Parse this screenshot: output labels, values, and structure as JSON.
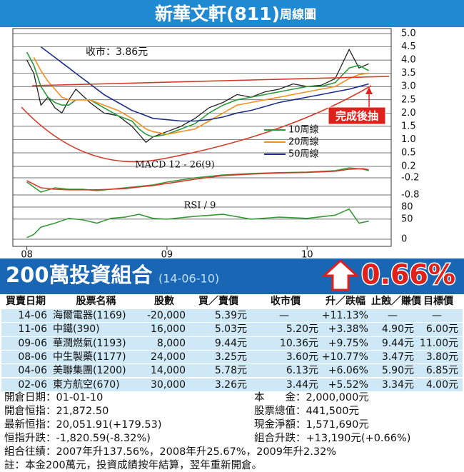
{
  "chart_data": [
    {
      "type": "line",
      "title": "新華文軒(811)",
      "subtitle": "周線圖",
      "x": [
        2008.0,
        2008.05,
        2008.1,
        2008.15,
        2008.2,
        2008.25,
        2008.3,
        2008.35,
        2008.45,
        2008.55,
        2008.65,
        2008.75,
        2008.8,
        2008.85,
        2008.9,
        2009.0,
        2009.1,
        2009.2,
        2009.3,
        2009.4,
        2009.5,
        2009.6,
        2009.7,
        2009.8,
        2009.9,
        2010.0,
        2010.1,
        2010.2,
        2010.3,
        2010.37,
        2010.44
      ],
      "series": [
        {
          "color": "#222222",
          "values": [
            4.0,
            3.5,
            2.3,
            2.6,
            2.2,
            2.0,
            2.5,
            2.9,
            2.4,
            2.0,
            1.9,
            1.5,
            1.2,
            0.9,
            1.1,
            1.3,
            1.5,
            1.8,
            2.2,
            2.4,
            2.7,
            2.6,
            2.8,
            2.9,
            3.1,
            3.0,
            3.05,
            3.3,
            4.4,
            3.7,
            3.86
          ]
        },
        {
          "name": "10周線",
          "color": "#2a9a3a",
          "values": [
            4.3,
            3.8,
            3.0,
            2.6,
            2.4,
            2.3,
            2.3,
            2.5,
            2.5,
            2.2,
            1.9,
            1.7,
            1.4,
            1.2,
            1.1,
            1.2,
            1.4,
            1.6,
            2.0,
            2.3,
            2.5,
            2.6,
            2.7,
            2.8,
            2.9,
            3.0,
            3.0,
            3.15,
            3.7,
            3.8,
            3.6
          ]
        },
        {
          "name": "20周線",
          "color": "#f0901e",
          "values": [
            null,
            4.1,
            3.6,
            3.2,
            2.9,
            2.6,
            2.5,
            2.5,
            2.5,
            2.3,
            2.1,
            1.8,
            1.6,
            1.4,
            1.3,
            1.2,
            1.3,
            1.4,
            1.7,
            2.0,
            2.3,
            2.4,
            2.5,
            2.6,
            2.7,
            2.8,
            2.9,
            3.0,
            3.3,
            3.45,
            3.5
          ]
        },
        {
          "name": "50周線",
          "color": "#1d2f8a",
          "values": [
            null,
            null,
            4.5,
            4.3,
            4.1,
            3.9,
            3.7,
            3.5,
            3.1,
            2.7,
            2.4,
            2.1,
            2.0,
            1.9,
            1.8,
            1.75,
            1.7,
            1.7,
            1.75,
            1.85,
            2.0,
            2.1,
            2.25,
            2.4,
            2.5,
            2.6,
            2.7,
            2.8,
            2.9,
            3.0,
            3.1
          ]
        }
      ],
      "xlim": [
        2007.9,
        2010.6
      ],
      "ylim": [
        0.5,
        5.0
      ],
      "yticks": [
        {
          "value": 5,
          "label": "5.0"
        },
        4.5,
        {
          "value": 4,
          "label": "4.0"
        },
        3.5,
        {
          "value": 3,
          "label": "3.0"
        },
        2.5,
        {
          "value": 2,
          "label": "2.0"
        },
        1.5,
        {
          "value": 1,
          "label": "1.0"
        },
        0.5
      ],
      "grid": true,
      "annotations": [
        "收市：3.86元",
        "完成後抽"
      ]
    },
    {
      "type": "line",
      "title": "MACD 12 - 26(9)",
      "x": [
        2008.0,
        2008.1,
        2008.2,
        2008.3,
        2008.4,
        2008.5,
        2008.6,
        2008.7,
        2008.8,
        2008.9,
        2009.0,
        2009.2,
        2009.4,
        2009.6,
        2009.8,
        2010.0,
        2010.2,
        2010.3,
        2010.4,
        2010.44
      ],
      "series": [
        {
          "color": "#3a9a3a",
          "values": [
            -0.35,
            -0.7,
            -0.55,
            -0.6,
            -0.6,
            -0.65,
            -0.6,
            -0.55,
            -0.5,
            -0.45,
            -0.35,
            -0.2,
            -0.1,
            -0.05,
            -0.02,
            0.0,
            0.05,
            0.15,
            0.1,
            0.05
          ]
        },
        {
          "color": "#d43a2a",
          "values": [
            -0.3,
            -0.55,
            -0.6,
            -0.62,
            -0.62,
            -0.62,
            -0.6,
            -0.58,
            -0.52,
            -0.47,
            -0.4,
            -0.25,
            -0.12,
            -0.07,
            -0.03,
            -0.01,
            0.03,
            0.1,
            0.12,
            0.08
          ]
        }
      ],
      "xlim": [
        2007.9,
        2010.6
      ],
      "ylim": [
        -0.8,
        0.2
      ],
      "yticks": [
        0.2,
        -0.2,
        -0.8
      ],
      "grid": true
    },
    {
      "type": "line",
      "title": "RSI / 9",
      "x": [
        2008.0,
        2008.05,
        2008.1,
        2008.2,
        2008.3,
        2008.4,
        2008.5,
        2008.6,
        2008.7,
        2008.8,
        2008.9,
        2009.0,
        2009.2,
        2009.4,
        2009.6,
        2009.8,
        2010.0,
        2010.2,
        2010.3,
        2010.37,
        2010.44
      ],
      "series": [
        {
          "color": "#3a9a3a",
          "values": [
            4,
            12,
            30,
            40,
            52,
            48,
            40,
            52,
            55,
            62,
            52,
            50,
            57,
            62,
            50,
            55,
            52,
            60,
            75,
            40,
            45
          ]
        }
      ],
      "xlim": [
        2007.9,
        2010.6
      ],
      "ylim": [
        0,
        80
      ],
      "yticks": [
        80,
        50,
        0
      ],
      "xticks": [
        {
          "value": 2008,
          "label": "08"
        },
        {
          "value": 2009,
          "label": "09"
        },
        {
          "value": 2010,
          "label": "10"
        }
      ],
      "grid": true
    }
  ],
  "portfolio": {
    "title": "200萬投資組合",
    "date": "(14-06-10)",
    "change": "0.66%",
    "table": {
      "header": [
        "買賣日期",
        "股票名稱",
        "股數",
        "買／賣價",
        "收市價",
        "升／跌幅",
        "止蝕／賺價",
        "目標價"
      ],
      "rows": [
        [
          "14-06",
          "海爾電器(1169)",
          "-20,000",
          "5.39元",
          "—",
          "+11.13%",
          "—",
          "—"
        ],
        [
          "11-06",
          "中鐵(390)",
          "16,000",
          "5.03元",
          "5.20元",
          "+3.38%",
          "4.90元",
          "6.00元"
        ],
        [
          "09-06",
          "華潤燃氣(1193)",
          "8,000",
          "9.44元",
          "10.36元",
          "+9.75%",
          "9.44元",
          "11.00元"
        ],
        [
          "08-06",
          "中生製藥(1177)",
          "24,000",
          "3.25元",
          "3.60元",
          "+10.77%",
          "3.47元",
          "3.80元"
        ],
        [
          "04-06",
          "美聯集團(1200)",
          "14,000",
          "5.78元",
          "6.13元",
          "+6.06%",
          "5.90元",
          "6.85元"
        ],
        [
          "02-06",
          "東方航空(670)",
          "30,000",
          "3.26元",
          "3.44元",
          "+5.52%",
          "3.34元",
          "4.00元"
        ]
      ]
    },
    "summary": {
      "left": [
        "開倉日期：01-01-10",
        "開倉恒指：21,872.50",
        "最新恒指：20,051.91(+179.53)",
        "恒指升跌：-1,820.59(-8.32%)"
      ],
      "right": [
        "本　　金：2,000,000元",
        "股票總值：441,500元",
        "現金淨額：1,571,690元",
        "組合升跌：+13,190元(+0.66%)"
      ],
      "notes": [
        "組合往績：2007年升137.56%，2008年升25.67%，2009年升2.32%",
        "註：本金200萬元，投資成績按年結算，翌年重新開倉。"
      ]
    }
  }
}
